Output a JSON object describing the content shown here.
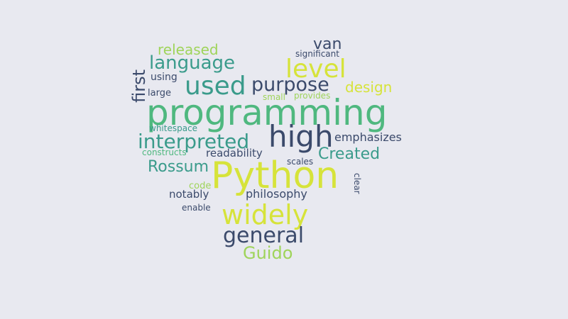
{
  "colors": {
    "background": "#e8e9f0",
    "yellow": "#d6e33a",
    "lime": "#9fd45a",
    "green": "#4fb87f",
    "teal": "#3a9b8b",
    "blue": "#356d8c",
    "navy": "#3b4a6b"
  },
  "words": [
    "released",
    "van",
    "significant",
    "language",
    "level",
    "first",
    "using",
    "used",
    "purpose",
    "design",
    "large",
    "small",
    "provides",
    "programming",
    "high",
    "interpreted",
    "emphasizes",
    "whitespace",
    "constructs",
    "readability",
    "Created",
    "Rossum",
    "Python",
    "scales",
    "code",
    "clear",
    "notably",
    "philosophy",
    "enable",
    "widely",
    "general",
    "Guido"
  ]
}
